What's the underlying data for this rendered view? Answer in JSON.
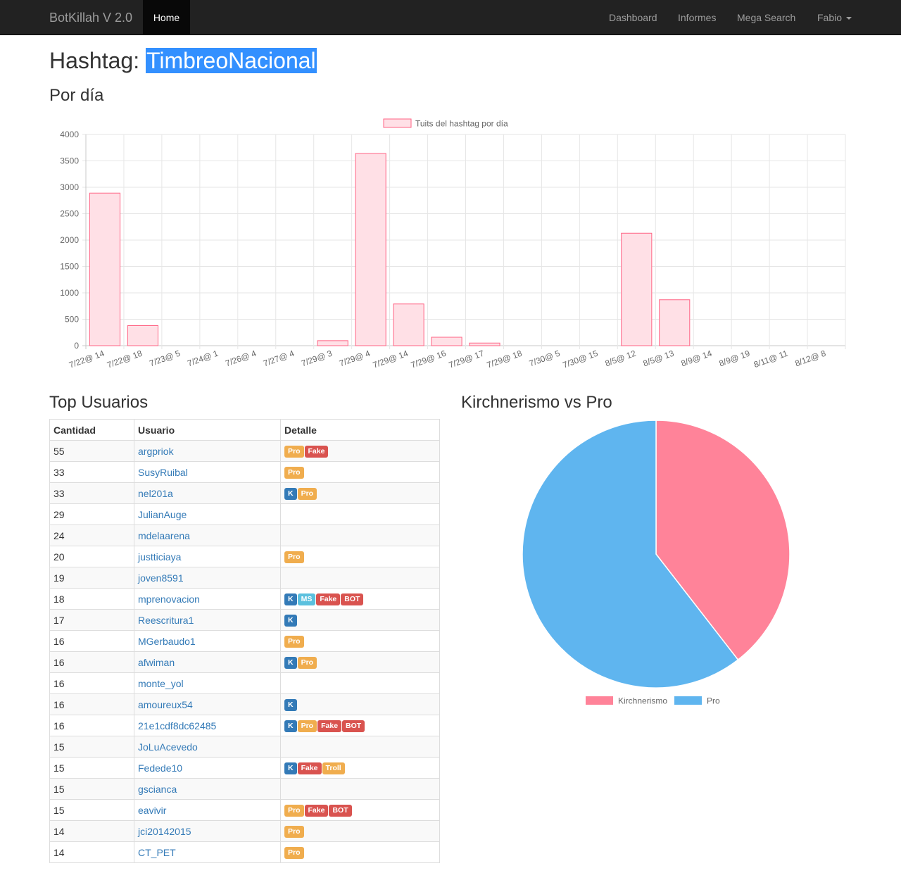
{
  "nav": {
    "brand": "BotKillah V 2.0",
    "home": "Home",
    "links": [
      "Dashboard",
      "Informes",
      "Mega Search"
    ],
    "user": "Fabio"
  },
  "page": {
    "title_prefix": "Hashtag:",
    "hashtag": "TimbreoNacional",
    "per_day_heading": "Por día",
    "top_users_heading": "Top Usuarios",
    "pie_heading": "Kirchnerismo vs Pro"
  },
  "colors": {
    "bar_fill": "#ffe0e6",
    "bar_border": "#ff6384",
    "kirchnerismo": "#ff8399",
    "pro": "#5fb5ef",
    "K": "#337ab7",
    "Pro": "#f0ad4e",
    "Fake": "#d9534f",
    "BOT": "#d9534f",
    "Troll": "#f0ad4e",
    "MS": "#5bc0de"
  },
  "chart_data": [
    {
      "type": "bar",
      "legend": "Tuits del hashtag  por día",
      "categories": [
        "7/22@ 14",
        "7/22@ 18",
        "7/23@ 5",
        "7/24@ 1",
        "7/26@ 4",
        "7/27@ 4",
        "7/29@ 3",
        "7/29@ 4",
        "7/29@ 14",
        "7/29@ 16",
        "7/29@ 17",
        "7/29@ 18",
        "7/30@ 5",
        "7/30@ 15",
        "8/5@ 12",
        "8/5@ 13",
        "8/9@ 14",
        "8/9@ 19",
        "8/11@ 11",
        "8/12@ 8"
      ],
      "values": [
        2890,
        380,
        0,
        0,
        0,
        0,
        95,
        3640,
        790,
        160,
        50,
        0,
        0,
        0,
        2130,
        870,
        0,
        0,
        0,
        0
      ],
      "ylim": [
        0,
        4000
      ],
      "yticks": [
        0,
        500,
        1000,
        1500,
        2000,
        2500,
        3000,
        3500,
        4000
      ],
      "grid": true,
      "legend_position": "top"
    },
    {
      "type": "pie",
      "labels": [
        "Kirchnerismo",
        "Pro"
      ],
      "values": [
        39.5,
        60.5
      ],
      "legend_position": "bottom"
    }
  ],
  "table": {
    "headers": [
      "Cantidad",
      "Usuario",
      "Detalle"
    ],
    "rows": [
      {
        "count": "55",
        "user": "argpriok",
        "tags": [
          "Pro",
          "Fake"
        ]
      },
      {
        "count": "33",
        "user": "SusyRuibal",
        "tags": [
          "Pro"
        ]
      },
      {
        "count": "33",
        "user": "nel201a",
        "tags": [
          "K",
          "Pro"
        ]
      },
      {
        "count": "29",
        "user": "JulianAuge",
        "tags": []
      },
      {
        "count": "24",
        "user": "mdelaarena",
        "tags": []
      },
      {
        "count": "20",
        "user": "justticiaya",
        "tags": [
          "Pro"
        ]
      },
      {
        "count": "19",
        "user": "joven8591",
        "tags": []
      },
      {
        "count": "18",
        "user": "mprenovacion",
        "tags": [
          "K",
          "MS",
          "Fake",
          "BOT"
        ]
      },
      {
        "count": "17",
        "user": "Reescritura1",
        "tags": [
          "K"
        ]
      },
      {
        "count": "16",
        "user": "MGerbaudo1",
        "tags": [
          "Pro"
        ]
      },
      {
        "count": "16",
        "user": "afwiman",
        "tags": [
          "K",
          "Pro"
        ]
      },
      {
        "count": "16",
        "user": "monte_yol",
        "tags": []
      },
      {
        "count": "16",
        "user": "amoureux54",
        "tags": [
          "K"
        ]
      },
      {
        "count": "16",
        "user": "21e1cdf8dc62485",
        "tags": [
          "K",
          "Pro",
          "Fake",
          "BOT"
        ]
      },
      {
        "count": "15",
        "user": "JoLuAcevedo",
        "tags": []
      },
      {
        "count": "15",
        "user": "Fedede10",
        "tags": [
          "K",
          "Fake",
          "Troll"
        ]
      },
      {
        "count": "15",
        "user": "gscianca",
        "tags": []
      },
      {
        "count": "15",
        "user": "eavivir",
        "tags": [
          "Pro",
          "Fake",
          "BOT"
        ]
      },
      {
        "count": "14",
        "user": "jci20142015",
        "tags": [
          "Pro"
        ]
      },
      {
        "count": "14",
        "user": "CT_PET",
        "tags": [
          "Pro"
        ]
      }
    ]
  }
}
